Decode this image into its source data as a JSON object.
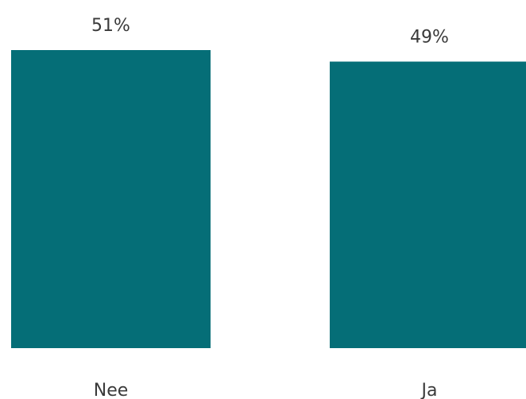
{
  "chart_data": {
    "type": "bar",
    "categories": [
      "Nee",
      "Ja"
    ],
    "values": [
      51,
      49
    ],
    "data_labels": [
      "51%",
      "49%"
    ],
    "unit": "%",
    "ylim": [
      0,
      51
    ],
    "grid": false,
    "legend": "none",
    "bar_color": "#056e77"
  }
}
